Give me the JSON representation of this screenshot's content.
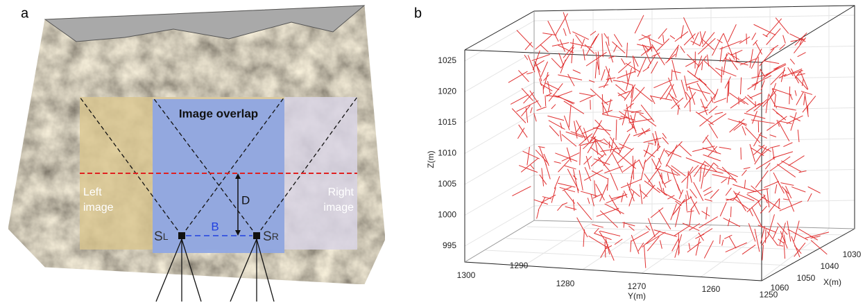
{
  "panels": [
    {
      "label": "a",
      "overlap_title": "Image overlap",
      "left_label": [
        "Left",
        "image"
      ],
      "right_label": [
        "Right",
        "image"
      ],
      "depth": "D",
      "baseline": "B",
      "left_station": {
        "main": "S",
        "sub": "L"
      },
      "right_station": {
        "main": "S",
        "sub": "R"
      }
    },
    {
      "label": "b",
      "z_axis": {
        "title": "Z(m)",
        "ticks": [
          1025,
          1020,
          1015,
          1010,
          1005,
          1000,
          995
        ]
      },
      "y_axis": {
        "title": "Y(m)",
        "ticks": [
          1300,
          1290,
          1280,
          1270,
          1260,
          1250
        ]
      },
      "x_axis": {
        "title": "X(m)",
        "ticks": [
          1060,
          1050,
          1040,
          1030
        ]
      }
    }
  ]
}
